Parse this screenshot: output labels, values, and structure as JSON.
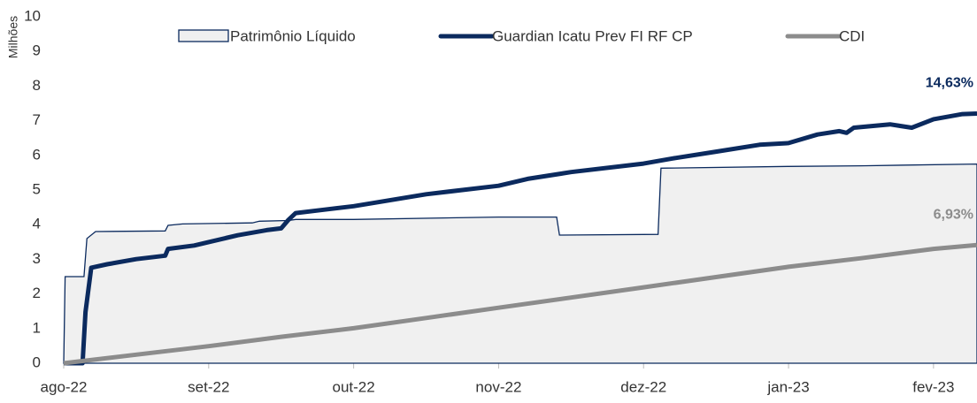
{
  "chart_data": {
    "type": "line",
    "y_label": "Milhões",
    "xlim": [
      0,
      6.3
    ],
    "xticks": [
      {
        "value": 0,
        "label": "ago-22"
      },
      {
        "value": 1,
        "label": "set-22"
      },
      {
        "value": 2,
        "label": "out-22"
      },
      {
        "value": 3,
        "label": "nov-22"
      },
      {
        "value": 4,
        "label": "dez-22"
      },
      {
        "value": 5,
        "label": "jan-23"
      },
      {
        "value": 6,
        "label": "fev-23"
      }
    ],
    "ylim": [
      0,
      10
    ],
    "yticks": [
      0,
      1,
      2,
      3,
      4,
      5,
      6,
      7,
      8,
      9,
      10
    ],
    "y2lim": [
      0,
      20.3
    ],
    "series": [
      {
        "name": "Patrimônio Líquido",
        "kind": "area",
        "color": "#0b2a5e",
        "fill": "#f0f0f0",
        "x": [
          0,
          0.01,
          0.14,
          0.16,
          0.22,
          0.7,
          0.72,
          0.82,
          1.3,
          1.35,
          1.55,
          1.6,
          2.0,
          3.0,
          3.4,
          3.42,
          4.1,
          4.12,
          5.0,
          5.5,
          6.3
        ],
        "values": [
          0,
          2.5,
          2.5,
          3.6,
          3.8,
          3.82,
          3.98,
          4.02,
          4.05,
          4.1,
          4.12,
          4.15,
          4.15,
          4.22,
          4.22,
          3.7,
          3.72,
          5.63,
          5.68,
          5.7,
          5.75
        ]
      },
      {
        "name": "Guardian Icatu Prev FI RF CP",
        "kind": "line",
        "axis": "y2",
        "color": "#0b2a5e",
        "x": [
          0,
          0.13,
          0.15,
          0.19,
          0.3,
          0.5,
          0.7,
          0.72,
          0.9,
          1.0,
          1.2,
          1.4,
          1.5,
          1.55,
          1.6,
          1.8,
          2.0,
          2.5,
          3.0,
          3.2,
          3.5,
          4.0,
          4.2,
          4.5,
          4.8,
          5.0,
          5.2,
          5.35,
          5.4,
          5.45,
          5.7,
          5.85,
          6.0,
          6.2,
          6.3
        ],
        "values": [
          0,
          0,
          3.0,
          5.6,
          5.8,
          6.1,
          6.3,
          6.7,
          6.9,
          7.1,
          7.5,
          7.8,
          7.9,
          8.4,
          8.8,
          9.0,
          9.2,
          9.9,
          10.4,
          10.8,
          11.2,
          11.7,
          12.0,
          12.4,
          12.8,
          12.9,
          13.4,
          13.6,
          13.5,
          13.8,
          14.0,
          13.8,
          14.3,
          14.6,
          14.63
        ]
      },
      {
        "name": "CDI",
        "kind": "line",
        "axis": "y2",
        "color": "#8c8c8c",
        "x": [
          0,
          0.5,
          1,
          1.5,
          2,
          2.5,
          3,
          3.5,
          4,
          4.5,
          5,
          5.5,
          6,
          6.3
        ],
        "values": [
          0,
          0.5,
          1.0,
          1.55,
          2.05,
          2.65,
          3.25,
          3.85,
          4.45,
          5.05,
          5.65,
          6.15,
          6.7,
          6.93
        ]
      }
    ],
    "annotations": [
      {
        "text": "14,63%",
        "series": 1
      },
      {
        "text": "6,93%",
        "series": 2
      }
    ]
  }
}
